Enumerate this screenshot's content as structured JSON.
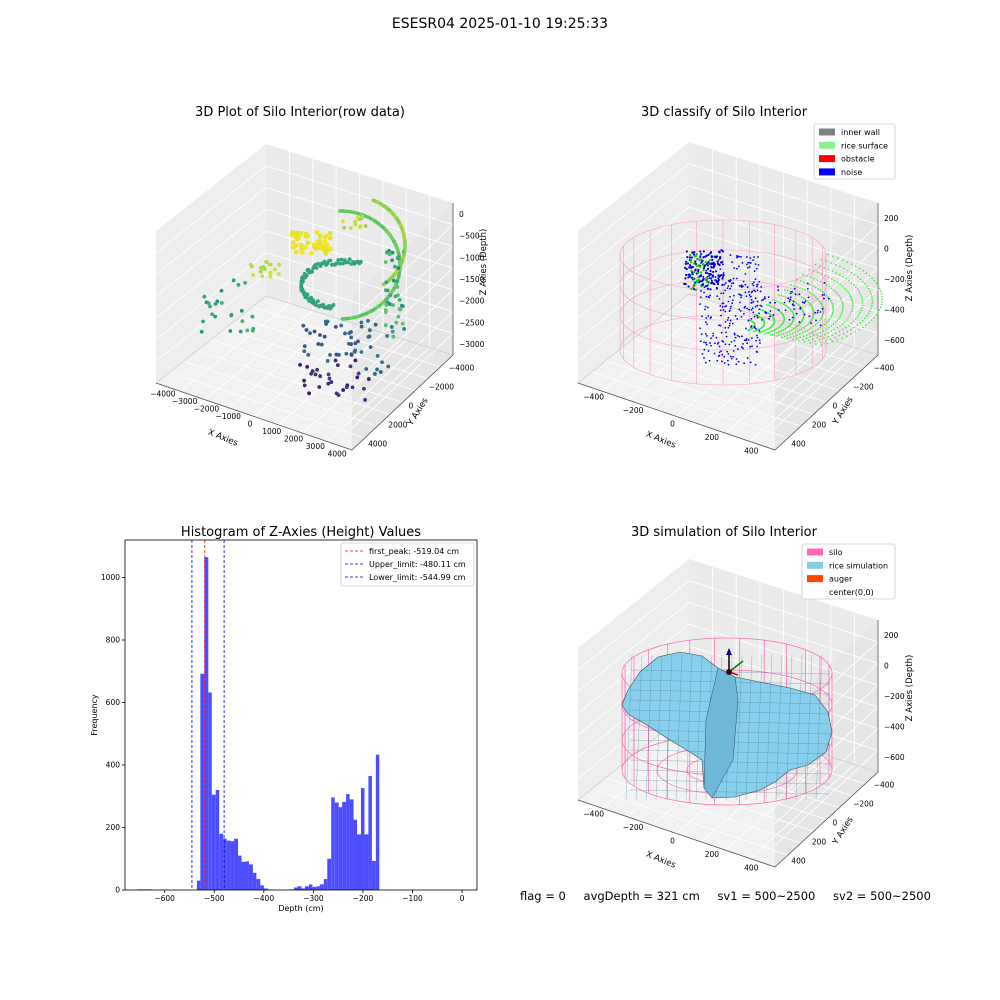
{
  "suptitle": "ESESR04 2025-01-10 19:25:33",
  "chart_data": [
    {
      "type": "scatter",
      "subtype": "3d",
      "title": "3D Plot of Silo Interior(row data)",
      "xlabel": "X Axies",
      "ylabel": "Y Axies",
      "zlabel": "Z Axies (Depth)",
      "x_ticks": [
        "−4000",
        "−3000",
        "−2000",
        "−1000",
        "0",
        "1000",
        "2000",
        "3000",
        "4000"
      ],
      "y_ticks": [
        "−4000",
        "−2000",
        "0",
        "2000",
        "4000"
      ],
      "z_ticks": [
        "0",
        "−500",
        "−1000",
        "−1500",
        "−2000",
        "−2500",
        "−3000"
      ],
      "xlim": [
        -4000,
        4000
      ],
      "ylim": [
        -4000,
        4000
      ],
      "zlim": [
        -3300,
        0
      ],
      "colormap": "viridis"
    },
    {
      "type": "scatter",
      "subtype": "3d",
      "title": "3D classify of Silo Interior",
      "xlabel": "X Axies",
      "ylabel": "Y Axies",
      "zlabel": "Z Axies (Depth)",
      "x_ticks": [
        "−400",
        "−200",
        "0",
        "200",
        "400"
      ],
      "y_ticks": [
        "−400",
        "−200",
        "0",
        "200",
        "400"
      ],
      "z_ticks": [
        "200",
        "0",
        "−200",
        "−400",
        "−600"
      ],
      "legend_position": "top-right",
      "legend": [
        {
          "label": "inner wall",
          "color": "#808080"
        },
        {
          "label": "rice surface",
          "color": "#90ee90"
        },
        {
          "label": "obstacle",
          "color": "#ff0000"
        },
        {
          "label": "noise",
          "color": "#0000ff"
        }
      ]
    },
    {
      "type": "bar",
      "subtype": "histogram",
      "title": "Histogram of Z-Axies (Height) Values",
      "xlabel": "Depth (cm)",
      "ylabel": "Frequency",
      "xlim": [
        -680,
        30
      ],
      "ylim": [
        0,
        1120
      ],
      "x_ticks": [
        -600,
        -500,
        -400,
        -300,
        -200,
        -100,
        0
      ],
      "x_tick_labels": [
        "−600",
        "−500",
        "−400",
        "−300",
        "−200",
        "−100",
        "0"
      ],
      "y_ticks": [
        0,
        200,
        400,
        600,
        800,
        1000
      ],
      "y_tick_labels": [
        "0",
        "200",
        "400",
        "600",
        "800",
        "1000"
      ],
      "bar_color": "#4d4dff",
      "bins": [
        [
          -655,
          -640,
          2
        ],
        [
          -640,
          -625,
          2
        ],
        [
          -610,
          -595,
          1
        ],
        [
          -535,
          -528,
          30
        ],
        [
          -528,
          -520,
          692
        ],
        [
          -520,
          -512,
          1065
        ],
        [
          -512,
          -505,
          632
        ],
        [
          -505,
          -497,
          305
        ],
        [
          -497,
          -490,
          320
        ],
        [
          -490,
          -482,
          180
        ],
        [
          -482,
          -475,
          165
        ],
        [
          -475,
          -467,
          158
        ],
        [
          -467,
          -460,
          156
        ],
        [
          -460,
          -452,
          164
        ],
        [
          -452,
          -445,
          110
        ],
        [
          -445,
          -437,
          90
        ],
        [
          -437,
          -430,
          92
        ],
        [
          -430,
          -422,
          82
        ],
        [
          -422,
          -415,
          55
        ],
        [
          -415,
          -407,
          35
        ],
        [
          -407,
          -400,
          15
        ],
        [
          -400,
          -392,
          5
        ],
        [
          -392,
          -385,
          2
        ],
        [
          -347,
          -339,
          2
        ],
        [
          -339,
          -332,
          8
        ],
        [
          -332,
          -324,
          12
        ],
        [
          -324,
          -317,
          5
        ],
        [
          -317,
          -309,
          12
        ],
        [
          -309,
          -302,
          18
        ],
        [
          -302,
          -294,
          10
        ],
        [
          -294,
          -287,
          12
        ],
        [
          -287,
          -279,
          18
        ],
        [
          -279,
          -272,
          35
        ],
        [
          -272,
          -264,
          100
        ],
        [
          -264,
          -257,
          296
        ],
        [
          -257,
          -249,
          280
        ],
        [
          -249,
          -242,
          265
        ],
        [
          -242,
          -234,
          282
        ],
        [
          -234,
          -227,
          307
        ],
        [
          -227,
          -219,
          290
        ],
        [
          -219,
          -212,
          225
        ],
        [
          -212,
          -204,
          178
        ],
        [
          -204,
          -197,
          326
        ],
        [
          -197,
          -189,
          178
        ],
        [
          -189,
          -182,
          365
        ],
        [
          -182,
          -174,
          93
        ],
        [
          -174,
          -167,
          433
        ]
      ],
      "vlines": [
        {
          "label": "first_peak: -519.04 cm",
          "value": -519.04,
          "color": "#ff0000"
        },
        {
          "label": "Upper_limit: -480.11 cm",
          "value": -480.11,
          "color": "#0000cc"
        },
        {
          "label": "Lower_limit: -544.99 cm",
          "value": -544.99,
          "color": "#0000cc"
        }
      ],
      "legend_position": "top-right"
    },
    {
      "type": "area",
      "subtype": "3d-surface",
      "title": "3D simulation of Silo Interior",
      "xlabel": "X Axies",
      "ylabel": "Y Axies",
      "zlabel": "Z Axies (Depth)",
      "x_ticks": [
        "−400",
        "−200",
        "0",
        "200",
        "400"
      ],
      "y_ticks": [
        "−400",
        "−200",
        "0",
        "200",
        "400"
      ],
      "z_ticks": [
        "200",
        "0",
        "−200",
        "−400",
        "−600"
      ],
      "legend_position": "top-right",
      "legend": [
        {
          "label": "silo",
          "color": "#ff69b4"
        },
        {
          "label": "rice simulation",
          "color": "#87ceeb"
        },
        {
          "label": "auger",
          "color": "#ff4500"
        },
        {
          "label": "center(0,0)",
          "color": ""
        }
      ]
    }
  ],
  "status": {
    "flag": "flag = 0",
    "avg_depth": "avgDepth = 321 cm",
    "sv1": "sv1 = 500~2500",
    "sv2": "sv2 = 500~2500"
  }
}
